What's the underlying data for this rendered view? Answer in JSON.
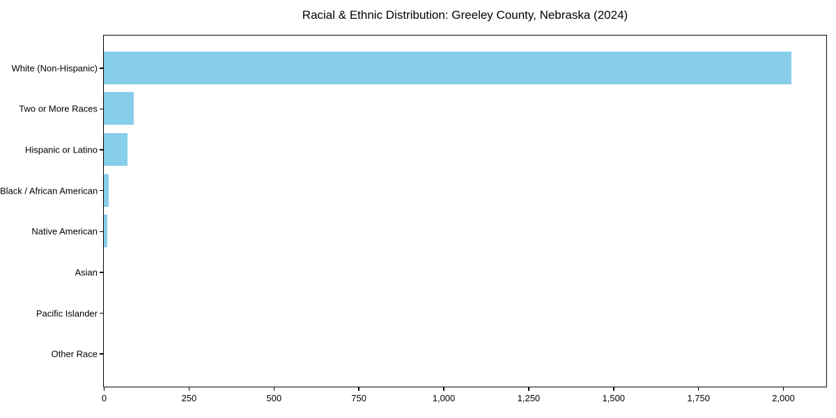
{
  "chart_data": {
    "type": "bar",
    "orientation": "horizontal",
    "title": "Racial & Ethnic Distribution: Greeley County, Nebraska (2024)",
    "categories": [
      "White (Non-Hispanic)",
      "Two or More Races",
      "Hispanic or Latino",
      "Black / African American",
      "Native American",
      "Asian",
      "Pacific Islander",
      "Other Race"
    ],
    "values": [
      2024,
      88,
      70,
      15,
      11,
      0,
      0,
      0
    ],
    "xlabel": "",
    "ylabel": "",
    "xlim": [
      0,
      2125
    ],
    "xticks": [
      0,
      250,
      500,
      750,
      1000,
      1250,
      1500,
      1750,
      2000
    ],
    "xtick_labels": [
      "0",
      "250",
      "500",
      "750",
      "1,000",
      "1,250",
      "1,500",
      "1,750",
      "2,000"
    ],
    "bar_color": "#87CEEB",
    "spine_color": "#000000",
    "text_color": "#000000",
    "background": "#FFFFFF",
    "grid": false,
    "legend": null
  }
}
